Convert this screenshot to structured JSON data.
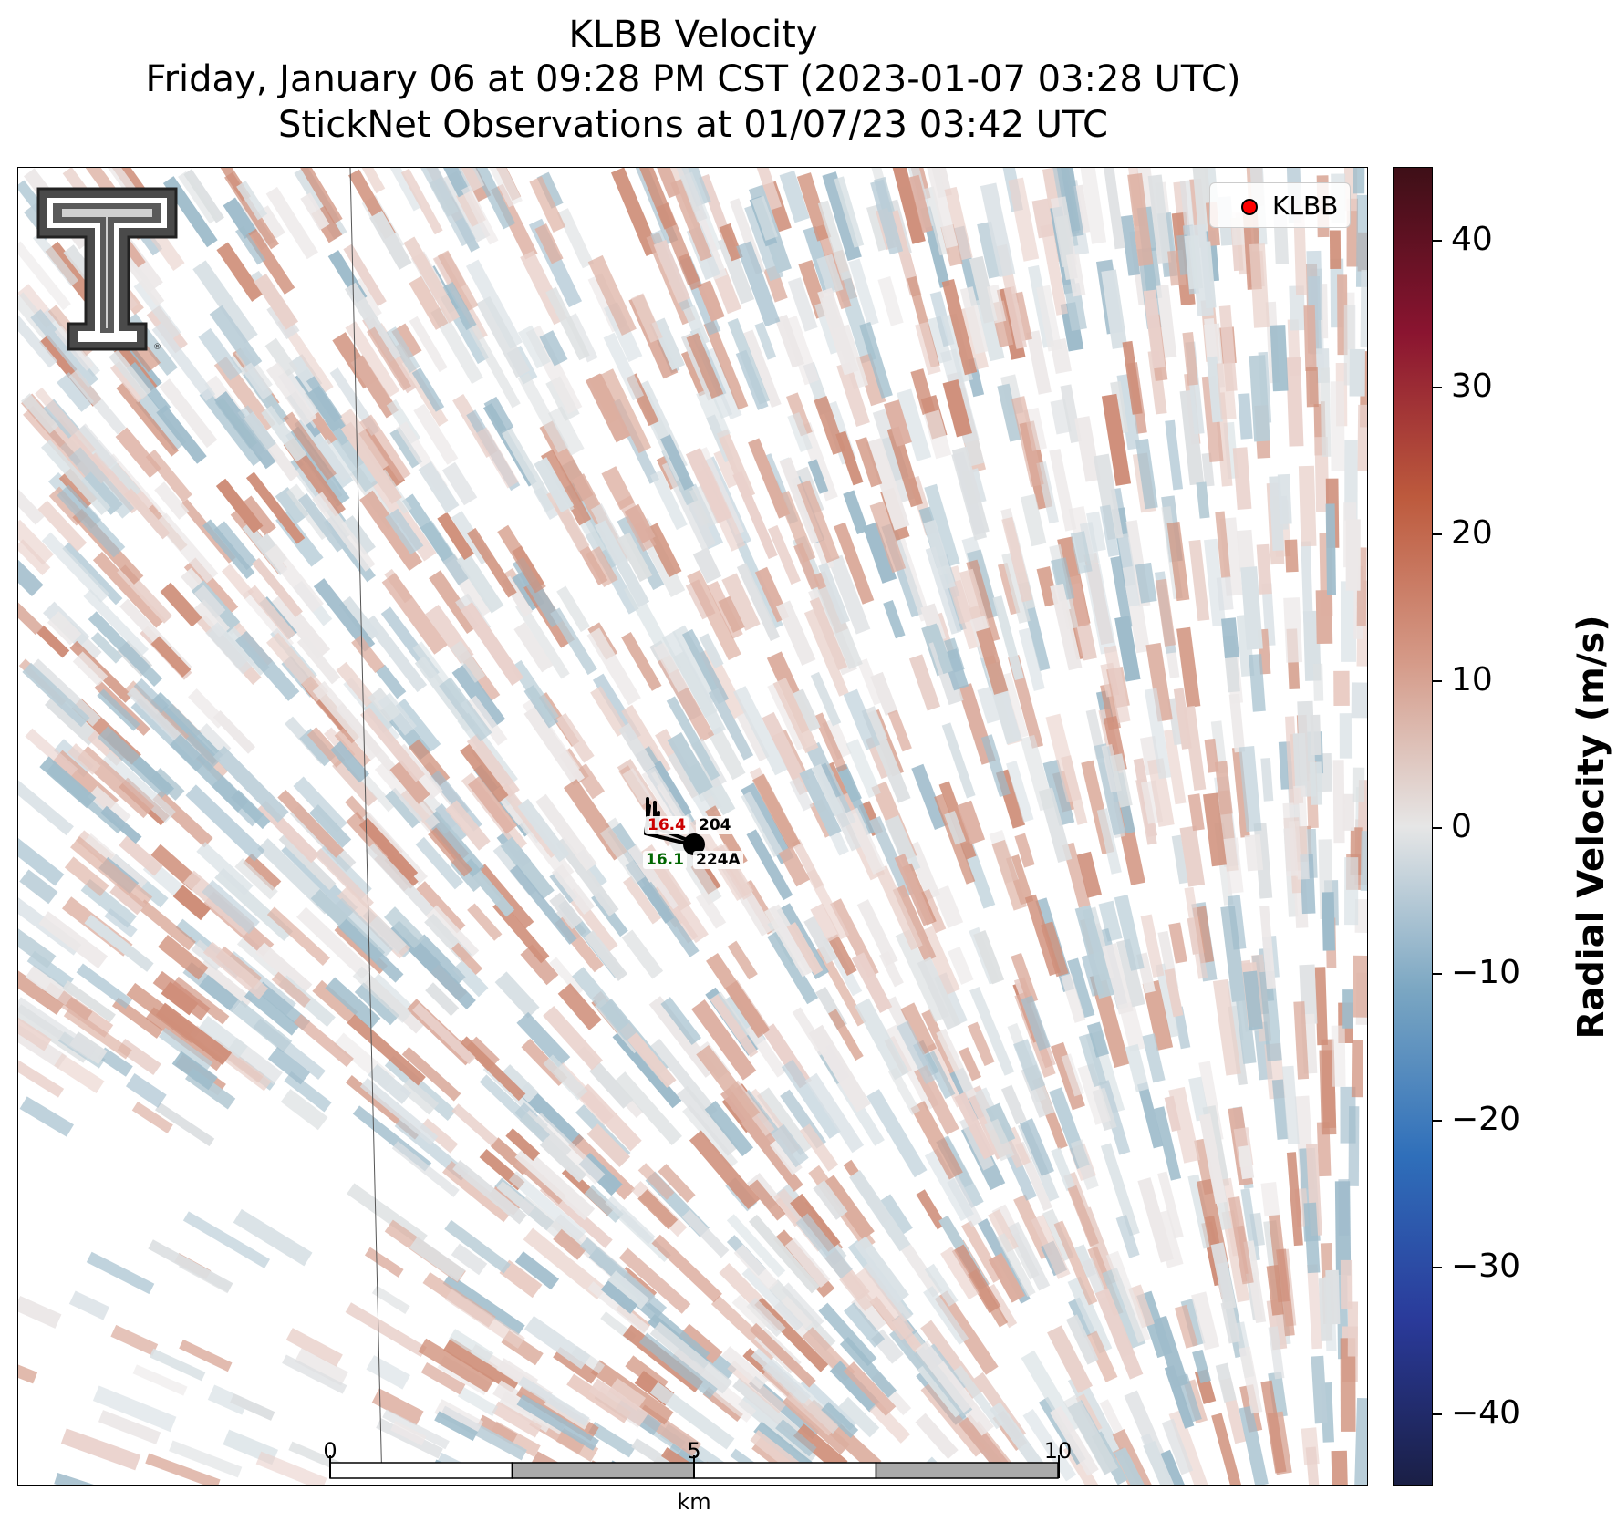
{
  "title": {
    "line1": "KLBB Velocity",
    "line2": "Friday, January 06 at 09:28 PM CST (2023-01-07 03:28 UTC)",
    "line3": "StickNet Observations at 01/07/23 03:42 UTC"
  },
  "legend": {
    "label": "KLBB",
    "marker_color": "#ff0000"
  },
  "colorbar": {
    "label": "Radial Velocity (m/s)",
    "ticks": [
      "40",
      "30",
      "20",
      "10",
      "0",
      "−10",
      "−20",
      "−30",
      "−40"
    ],
    "tick_values": [
      40,
      30,
      20,
      10,
      0,
      -10,
      -20,
      -30,
      -40
    ],
    "range": [
      -45,
      45
    ],
    "colors": [
      "#1a1f45",
      "#2a3a9a",
      "#2f6fba",
      "#7aa6c2",
      "#e6e6e6",
      "#d59a88",
      "#bd5a3d",
      "#8a1430",
      "#3e0f17"
    ]
  },
  "stations": [
    {
      "id": "204",
      "value": "16.4",
      "value_color": "#cc0000"
    },
    {
      "id": "224A",
      "value": "16.1",
      "value_color": "#006600"
    }
  ],
  "scale_bar": {
    "ticks": [
      "0",
      "5",
      "10"
    ],
    "unit": "km"
  },
  "logo": {
    "name": "texas-tech-double-t-logo"
  }
}
